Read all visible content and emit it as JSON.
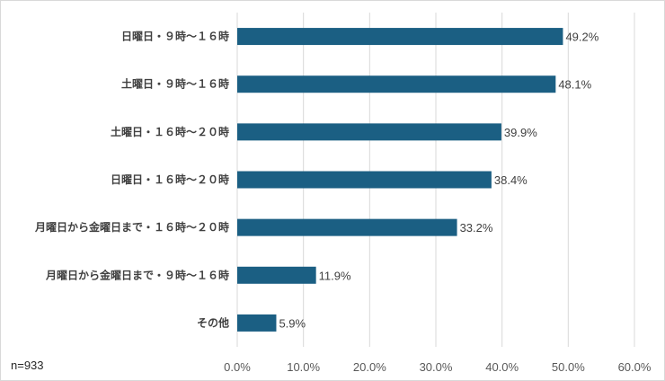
{
  "note": "n=933",
  "chart_data": {
    "type": "bar",
    "orientation": "horizontal",
    "categories": [
      "日曜日・９時～１６時",
      "土曜日・９時～１６時",
      "土曜日・１６時～２０時",
      "日曜日・１６時～２０時",
      "月曜日から金曜日まで・１６時～２０時",
      "月曜日から金曜日まで・９時～１６時",
      "その他"
    ],
    "values": [
      49.2,
      48.1,
      39.9,
      38.4,
      33.2,
      11.9,
      5.9
    ],
    "data_labels": [
      "49.2%",
      "48.1%",
      "39.9%",
      "38.4%",
      "33.2%",
      "11.9%",
      "5.9%"
    ],
    "xlim": [
      0,
      60
    ],
    "x_ticks": [
      "0.0%",
      "10.0%",
      "20.0%",
      "30.0%",
      "40.0%",
      "50.0%",
      "60.0%"
    ],
    "grid": "vertical",
    "bar_color": "#1b5f83",
    "grid_color": "#d9d9d9"
  }
}
